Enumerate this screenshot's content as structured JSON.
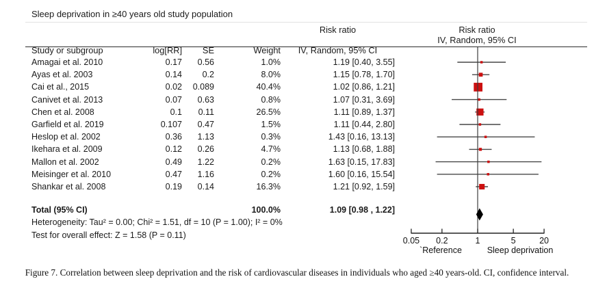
{
  "figure": {
    "title": "Sleep deprivation in ≥40 years old study population",
    "caption": "Figure 7. Correlation between sleep deprivation and the risk of cardiovascular diseases in individuals who aged ≥40 years-old. CI, confidence interval."
  },
  "table": {
    "headers": {
      "study": "Study or subgroup",
      "log_rr": "log[RR]",
      "se": "SE",
      "weight": "Weight",
      "ci": "IV, Random, 95% CI"
    },
    "risk_ratio_label": "Risk ratio"
  },
  "chart_data": {
    "type": "forest",
    "marker_color": "#cc1010",
    "line_color": "#474747",
    "studies": [
      {
        "name": "Amagai et al. 2010",
        "log_rr": "0.17",
        "se": "0.56",
        "weight": "1.0%",
        "weight_value": 1.0,
        "rr": 1.19,
        "ci_low": 0.4,
        "ci_high": 3.55,
        "ci_text": "1.19 [0.40, 3.55]"
      },
      {
        "name": "Ayas et al. 2003",
        "log_rr": "0.14",
        "se": "0.2",
        "weight": "8.0%",
        "weight_value": 8.0,
        "rr": 1.15,
        "ci_low": 0.78,
        "ci_high": 1.7,
        "ci_text": "1.15 [0.78, 1.70]"
      },
      {
        "name": "Cai et al., 2015",
        "log_rr": "0.02",
        "se": "0.089",
        "weight": "40.4%",
        "weight_value": 40.4,
        "rr": 1.02,
        "ci_low": 0.86,
        "ci_high": 1.21,
        "ci_text": "1.02 [0.86, 1.21]"
      },
      {
        "name": "Canivet et al. 2013",
        "log_rr": "0.07",
        "se": "0.63",
        "weight": "0.8%",
        "weight_value": 0.8,
        "rr": 1.07,
        "ci_low": 0.31,
        "ci_high": 3.69,
        "ci_text": "1.07 [0.31, 3.69]"
      },
      {
        "name": "Chen et al. 2008",
        "log_rr": "0.1",
        "se": "0.11",
        "weight": "26.5%",
        "weight_value": 26.5,
        "rr": 1.11,
        "ci_low": 0.89,
        "ci_high": 1.37,
        "ci_text": "1.11 [0.89, 1.37]"
      },
      {
        "name": "Garfield et al. 2019",
        "log_rr": "0.107",
        "se": "0.47",
        "weight": "1.5%",
        "weight_value": 1.5,
        "rr": 1.11,
        "ci_low": 0.44,
        "ci_high": 2.8,
        "ci_text": "1.11 [0.44, 2.80]"
      },
      {
        "name": "Heslop et al. 2002",
        "log_rr": "0.36",
        "se": "1.13",
        "weight": "0.3%",
        "weight_value": 0.3,
        "rr": 1.43,
        "ci_low": 0.16,
        "ci_high": 13.13,
        "ci_text": "1.43 [0.16, 13.13]"
      },
      {
        "name": "Ikehara et al. 2009",
        "log_rr": "0.12",
        "se": "0.26",
        "weight": "4.7%",
        "weight_value": 4.7,
        "rr": 1.13,
        "ci_low": 0.68,
        "ci_high": 1.88,
        "ci_text": "1.13 [0.68, 1.88]"
      },
      {
        "name": "Mallon et al. 2002",
        "log_rr": "0.49",
        "se": "1.22",
        "weight": "0.2%",
        "weight_value": 0.2,
        "rr": 1.63,
        "ci_low": 0.15,
        "ci_high": 17.83,
        "ci_text": "1.63 [0.15, 17.83]"
      },
      {
        "name": "Meisinger et al. 2010",
        "log_rr": "0.47",
        "se": "1.16",
        "weight": "0.2%",
        "weight_value": 0.2,
        "rr": 1.6,
        "ci_low": 0.16,
        "ci_high": 15.54,
        "ci_text": "1.60 [0.16, 15.54]"
      },
      {
        "name": "Shankar et al. 2008",
        "log_rr": "0.19",
        "se": "0.14",
        "weight": "16.3%",
        "weight_value": 16.3,
        "rr": 1.21,
        "ci_low": 0.92,
        "ci_high": 1.59,
        "ci_text": "1.21 [0.92, 1.59]"
      }
    ],
    "total": {
      "label": "Total (95% CI)",
      "weight": "100.0%",
      "rr": 1.09,
      "ci_low": 0.98,
      "ci_high": 1.22,
      "ci_text": "1.09 [0.98 , 1.22]"
    },
    "heterogeneity_text": "Heterogeneity: Tau² = 0.00; Chi² = 1.51, df = 10 (P = 1.00); I² = 0%",
    "overall_effect_text": "Test for overall effect: Z = 1.58 (P = 0.11)",
    "axis": {
      "scale": "log",
      "ticks": [
        0.05,
        0.2,
        1,
        5,
        20
      ],
      "left_label": "`Reference",
      "right_label": "Sleep deprivation"
    }
  }
}
